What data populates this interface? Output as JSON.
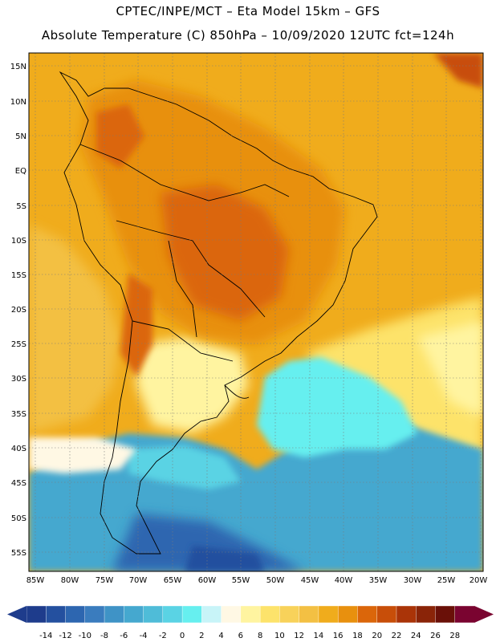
{
  "header": {
    "line1": "CPTEC/INPE/MCT –  Eta Model 15km – GFS",
    "line2": "Absolute Temperature (C) 850hPa – 10/09/2020 12UTC fct=124h"
  },
  "axes": {
    "lat_labels": [
      "15N",
      "10N",
      "5N",
      "EQ",
      "5S",
      "10S",
      "15S",
      "20S",
      "25S",
      "30S",
      "35S",
      "40S",
      "45S",
      "50S",
      "55S"
    ],
    "lon_labels": [
      "85W",
      "80W",
      "75W",
      "70W",
      "65W",
      "60W",
      "55W",
      "50W",
      "45W",
      "40W",
      "35W",
      "30W",
      "25W",
      "20W"
    ]
  },
  "colorbar": {
    "labels": [
      "-14",
      "-12",
      "-10",
      "-8",
      "-6",
      "-4",
      "-2",
      "0",
      "2",
      "4",
      "6",
      "8",
      "10",
      "12",
      "14",
      "16",
      "18",
      "20",
      "22",
      "24",
      "26",
      "28"
    ],
    "colors": [
      "#1e3c8c",
      "#24509f",
      "#2d66b0",
      "#3a7cbe",
      "#3f93c6",
      "#45a8cf",
      "#4fbcd8",
      "#5ad3e4",
      "#66efef",
      "#c8f4f8",
      "#fff8e4",
      "#fff4a0",
      "#fde36b",
      "#f8d25a",
      "#f3c043",
      "#f0ac1c",
      "#e8900e",
      "#db660a",
      "#c84e09",
      "#aa3408",
      "#8a2408",
      "#6a1008",
      "#7a0430"
    ]
  }
}
